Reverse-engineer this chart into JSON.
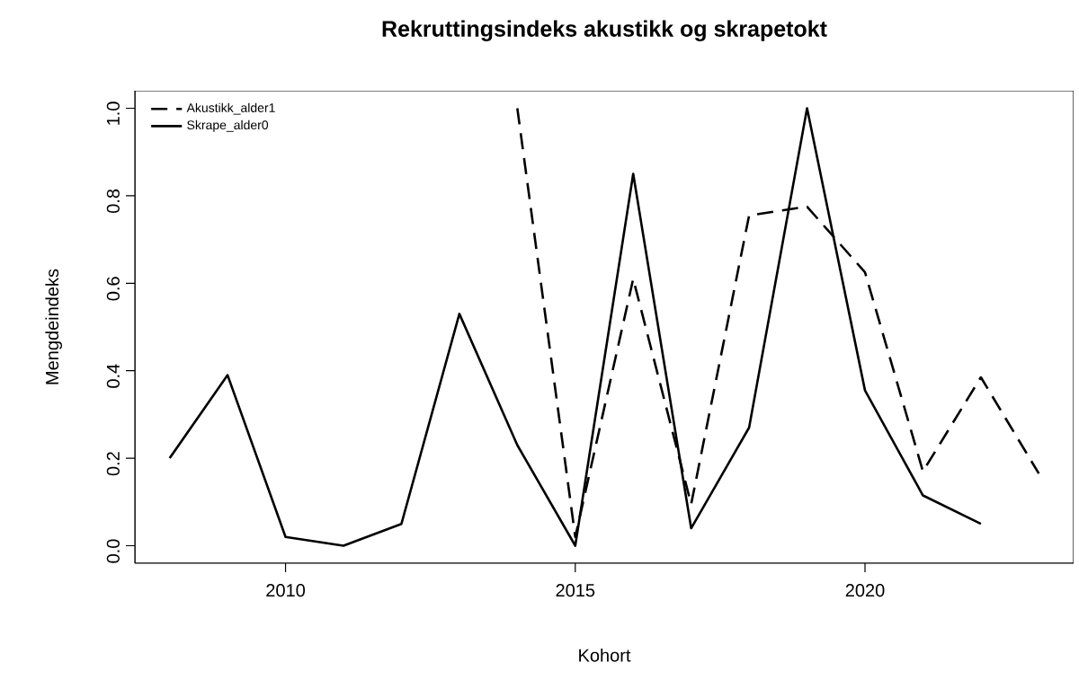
{
  "chart_data": {
    "type": "line",
    "title": "Rekruttingsindeks akustikk og skrapetokt",
    "xlabel": "Kohort",
    "ylabel": "Mengdeindeks",
    "series": [
      {
        "name": "Akustikk_alder1",
        "color": "#000000",
        "line_style": "dashed",
        "x": [
          2014,
          2015,
          2016,
          2017,
          2018,
          2019,
          2020,
          2021,
          2022,
          2023
        ],
        "values": [
          1.0,
          0.02,
          0.61,
          0.095,
          0.755,
          0.775,
          0.625,
          0.17,
          0.385,
          0.165
        ]
      },
      {
        "name": "Skrape_alder0",
        "color": "#000000",
        "line_style": "solid",
        "x": [
          2008,
          2009,
          2010,
          2011,
          2012,
          2013,
          2014,
          2015,
          2016,
          2017,
          2018,
          2019,
          2020,
          2021,
          2022
        ],
        "values": [
          0.2,
          0.39,
          0.02,
          0.0,
          0.05,
          0.53,
          0.23,
          0.0,
          0.85,
          0.04,
          0.27,
          1.0,
          0.355,
          0.115,
          0.05
        ]
      }
    ],
    "xlim": [
      2007.4,
      2023.6
    ],
    "ylim": [
      -0.04,
      1.04
    ],
    "xticks": [
      2010,
      2015,
      2020
    ],
    "yticks": [
      {
        "value": 0,
        "label": "0.0"
      },
      {
        "value": 0.2,
        "label": "0.2"
      },
      {
        "value": 0.4,
        "label": "0.4"
      },
      {
        "value": 0.6,
        "label": "0.6"
      },
      {
        "value": 0.8,
        "label": "0.8"
      },
      {
        "value": 1,
        "label": "1.0"
      }
    ],
    "legend": "top left",
    "grid": false,
    "marker": "none"
  }
}
